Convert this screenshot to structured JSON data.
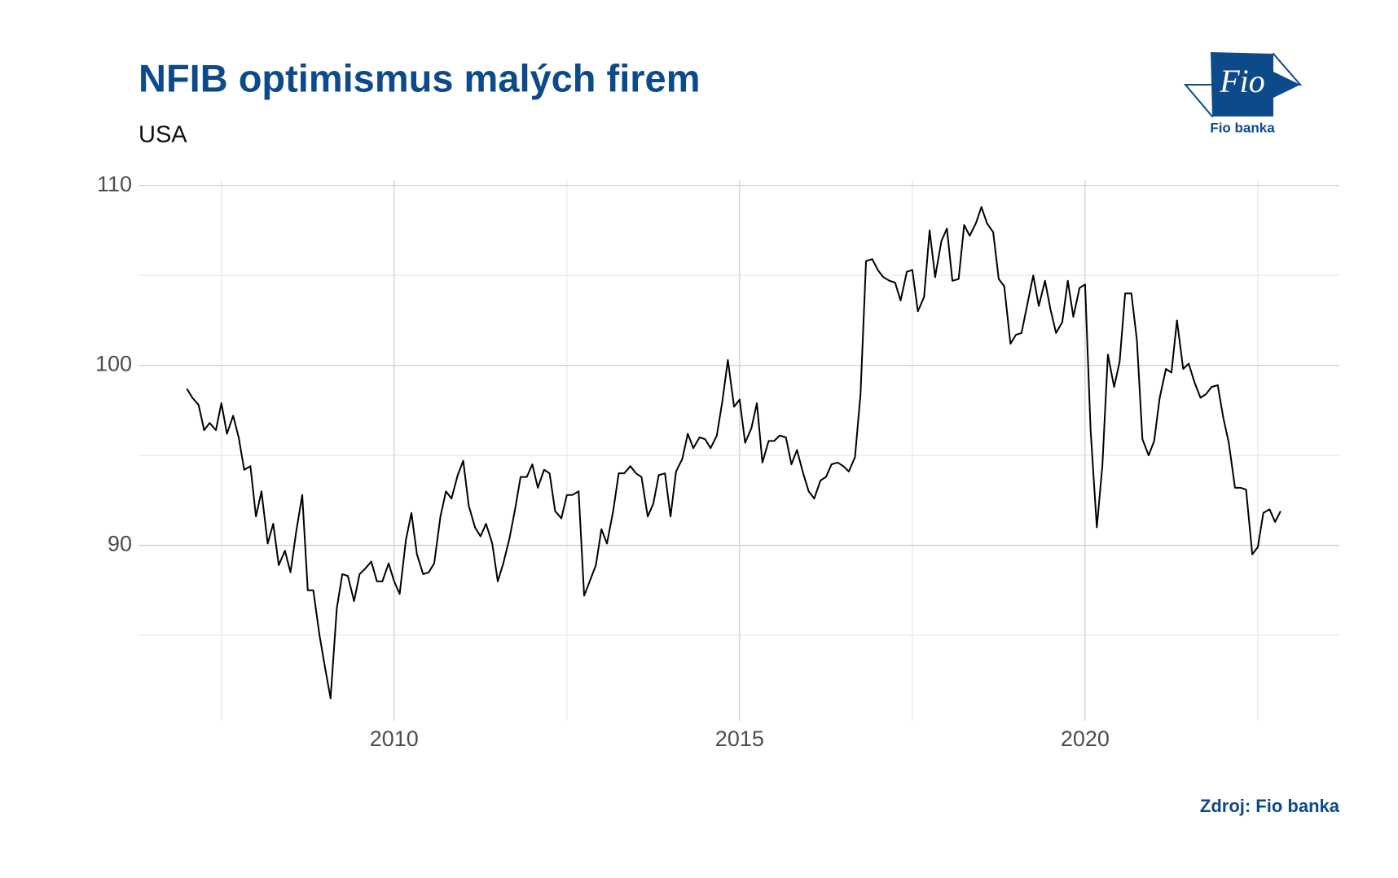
{
  "chart_data": {
    "type": "line",
    "title": "NFIB optimismus malých firem",
    "subtitle": "USA",
    "source": "Zdroj: Fio banka",
    "logo_text": "Fio",
    "logo_caption": "Fio banka",
    "color": "#000000",
    "grid": true,
    "xlim": [
      2006.3,
      2023.68
    ],
    "ylim": [
      80.25,
      110.3
    ],
    "xticks": [
      2010,
      2015,
      2020
    ],
    "yticks": [
      90,
      100,
      110
    ],
    "x_minor_grid": [
      2007.5,
      2012.5,
      2017.5,
      2022.5
    ],
    "y_minor_grid": [
      85,
      95,
      105
    ],
    "x": [
      2007.0,
      2007.08,
      2007.17,
      2007.25,
      2007.33,
      2007.42,
      2007.5,
      2007.58,
      2007.67,
      2007.75,
      2007.83,
      2007.92,
      2008.0,
      2008.08,
      2008.17,
      2008.25,
      2008.33,
      2008.42,
      2008.5,
      2008.58,
      2008.67,
      2008.75,
      2008.83,
      2008.92,
      2009.0,
      2009.08,
      2009.17,
      2009.25,
      2009.33,
      2009.42,
      2009.5,
      2009.58,
      2009.67,
      2009.75,
      2009.83,
      2009.92,
      2010.0,
      2010.08,
      2010.17,
      2010.25,
      2010.33,
      2010.42,
      2010.5,
      2010.58,
      2010.67,
      2010.75,
      2010.83,
      2010.92,
      2011.0,
      2011.08,
      2011.17,
      2011.25,
      2011.33,
      2011.42,
      2011.5,
      2011.58,
      2011.67,
      2011.75,
      2011.83,
      2011.92,
      2012.0,
      2012.08,
      2012.17,
      2012.25,
      2012.33,
      2012.42,
      2012.5,
      2012.58,
      2012.67,
      2012.75,
      2012.83,
      2012.92,
      2013.0,
      2013.08,
      2013.17,
      2013.25,
      2013.33,
      2013.42,
      2013.5,
      2013.58,
      2013.67,
      2013.75,
      2013.83,
      2013.92,
      2014.0,
      2014.08,
      2014.17,
      2014.25,
      2014.33,
      2014.42,
      2014.5,
      2014.58,
      2014.67,
      2014.75,
      2014.83,
      2014.92,
      2015.0,
      2015.08,
      2015.17,
      2015.25,
      2015.33,
      2015.42,
      2015.5,
      2015.58,
      2015.67,
      2015.75,
      2015.83,
      2015.92,
      2016.0,
      2016.08,
      2016.17,
      2016.25,
      2016.33,
      2016.42,
      2016.5,
      2016.58,
      2016.67,
      2016.75,
      2016.83,
      2016.92,
      2017.0,
      2017.08,
      2017.17,
      2017.25,
      2017.33,
      2017.42,
      2017.5,
      2017.58,
      2017.67,
      2017.75,
      2017.83,
      2017.92,
      2018.0,
      2018.08,
      2018.17,
      2018.25,
      2018.33,
      2018.42,
      2018.5,
      2018.58,
      2018.67,
      2018.75,
      2018.83,
      2018.92,
      2019.0,
      2019.08,
      2019.17,
      2019.25,
      2019.33,
      2019.42,
      2019.5,
      2019.58,
      2019.67,
      2019.75,
      2019.83,
      2019.92,
      2020.0,
      2020.08,
      2020.17,
      2020.25,
      2020.33,
      2020.42,
      2020.5,
      2020.58,
      2020.67,
      2020.75,
      2020.83,
      2020.92,
      2021.0,
      2021.08,
      2021.17,
      2021.25,
      2021.33,
      2021.42,
      2021.5,
      2021.58,
      2021.67,
      2021.75,
      2021.83,
      2021.92,
      2022.0,
      2022.08,
      2022.17,
      2022.25,
      2022.33,
      2022.42,
      2022.5,
      2022.58,
      2022.67,
      2022.75,
      2022.83
    ],
    "values": [
      98.7,
      98.2,
      97.8,
      96.4,
      96.8,
      96.4,
      97.9,
      96.2,
      97.2,
      96.0,
      94.2,
      94.4,
      91.6,
      93.0,
      90.1,
      91.2,
      88.9,
      89.7,
      88.5,
      90.7,
      92.8,
      87.5,
      87.5,
      85.0,
      83.2,
      81.5,
      86.5,
      88.4,
      88.3,
      86.9,
      88.4,
      88.7,
      89.1,
      88.0,
      88.0,
      89.0,
      88.0,
      87.3,
      90.3,
      91.8,
      89.5,
      88.4,
      88.5,
      89.0,
      91.6,
      93.0,
      92.6,
      93.9,
      94.7,
      92.2,
      91.0,
      90.5,
      91.2,
      90.1,
      88.0,
      89.0,
      90.4,
      92.0,
      93.8,
      93.8,
      94.5,
      93.2,
      94.2,
      94.0,
      91.9,
      91.5,
      92.8,
      92.8,
      93.0,
      87.2,
      88.0,
      88.9,
      90.9,
      90.1,
      91.9,
      94.0,
      94.0,
      94.4,
      94.0,
      93.8,
      91.6,
      92.3,
      93.9,
      94.0,
      91.6,
      94.1,
      94.8,
      96.2,
      95.4,
      96.0,
      95.9,
      95.4,
      96.1,
      98.0,
      100.3,
      97.7,
      98.1,
      95.7,
      96.5,
      97.9,
      94.6,
      95.8,
      95.8,
      96.1,
      96.0,
      94.5,
      95.3,
      94.0,
      93.0,
      92.6,
      93.6,
      93.8,
      94.5,
      94.6,
      94.4,
      94.1,
      94.9,
      98.4,
      105.8,
      105.9,
      105.3,
      104.9,
      104.7,
      104.6,
      103.6,
      105.2,
      105.3,
      103.0,
      103.8,
      107.5,
      104.9,
      106.9,
      107.6,
      104.7,
      104.8,
      107.8,
      107.2,
      107.9,
      108.8,
      107.9,
      107.4,
      104.8,
      104.4,
      101.2,
      101.7,
      101.8,
      103.5,
      105.0,
      103.3,
      104.7,
      103.1,
      101.8,
      102.4,
      104.7,
      102.7,
      104.3,
      104.5,
      96.4,
      91.0,
      94.4,
      100.6,
      98.8,
      100.2,
      104.0,
      104.0,
      101.4,
      95.9,
      95.0,
      95.8,
      98.2,
      99.8,
      99.6,
      102.5,
      99.8,
      100.1,
      99.1,
      98.2,
      98.4,
      98.8,
      98.9,
      97.1,
      95.7,
      93.2,
      93.2,
      93.1,
      89.5,
      89.9,
      91.8,
      92.0,
      91.3,
      91.9
    ]
  }
}
